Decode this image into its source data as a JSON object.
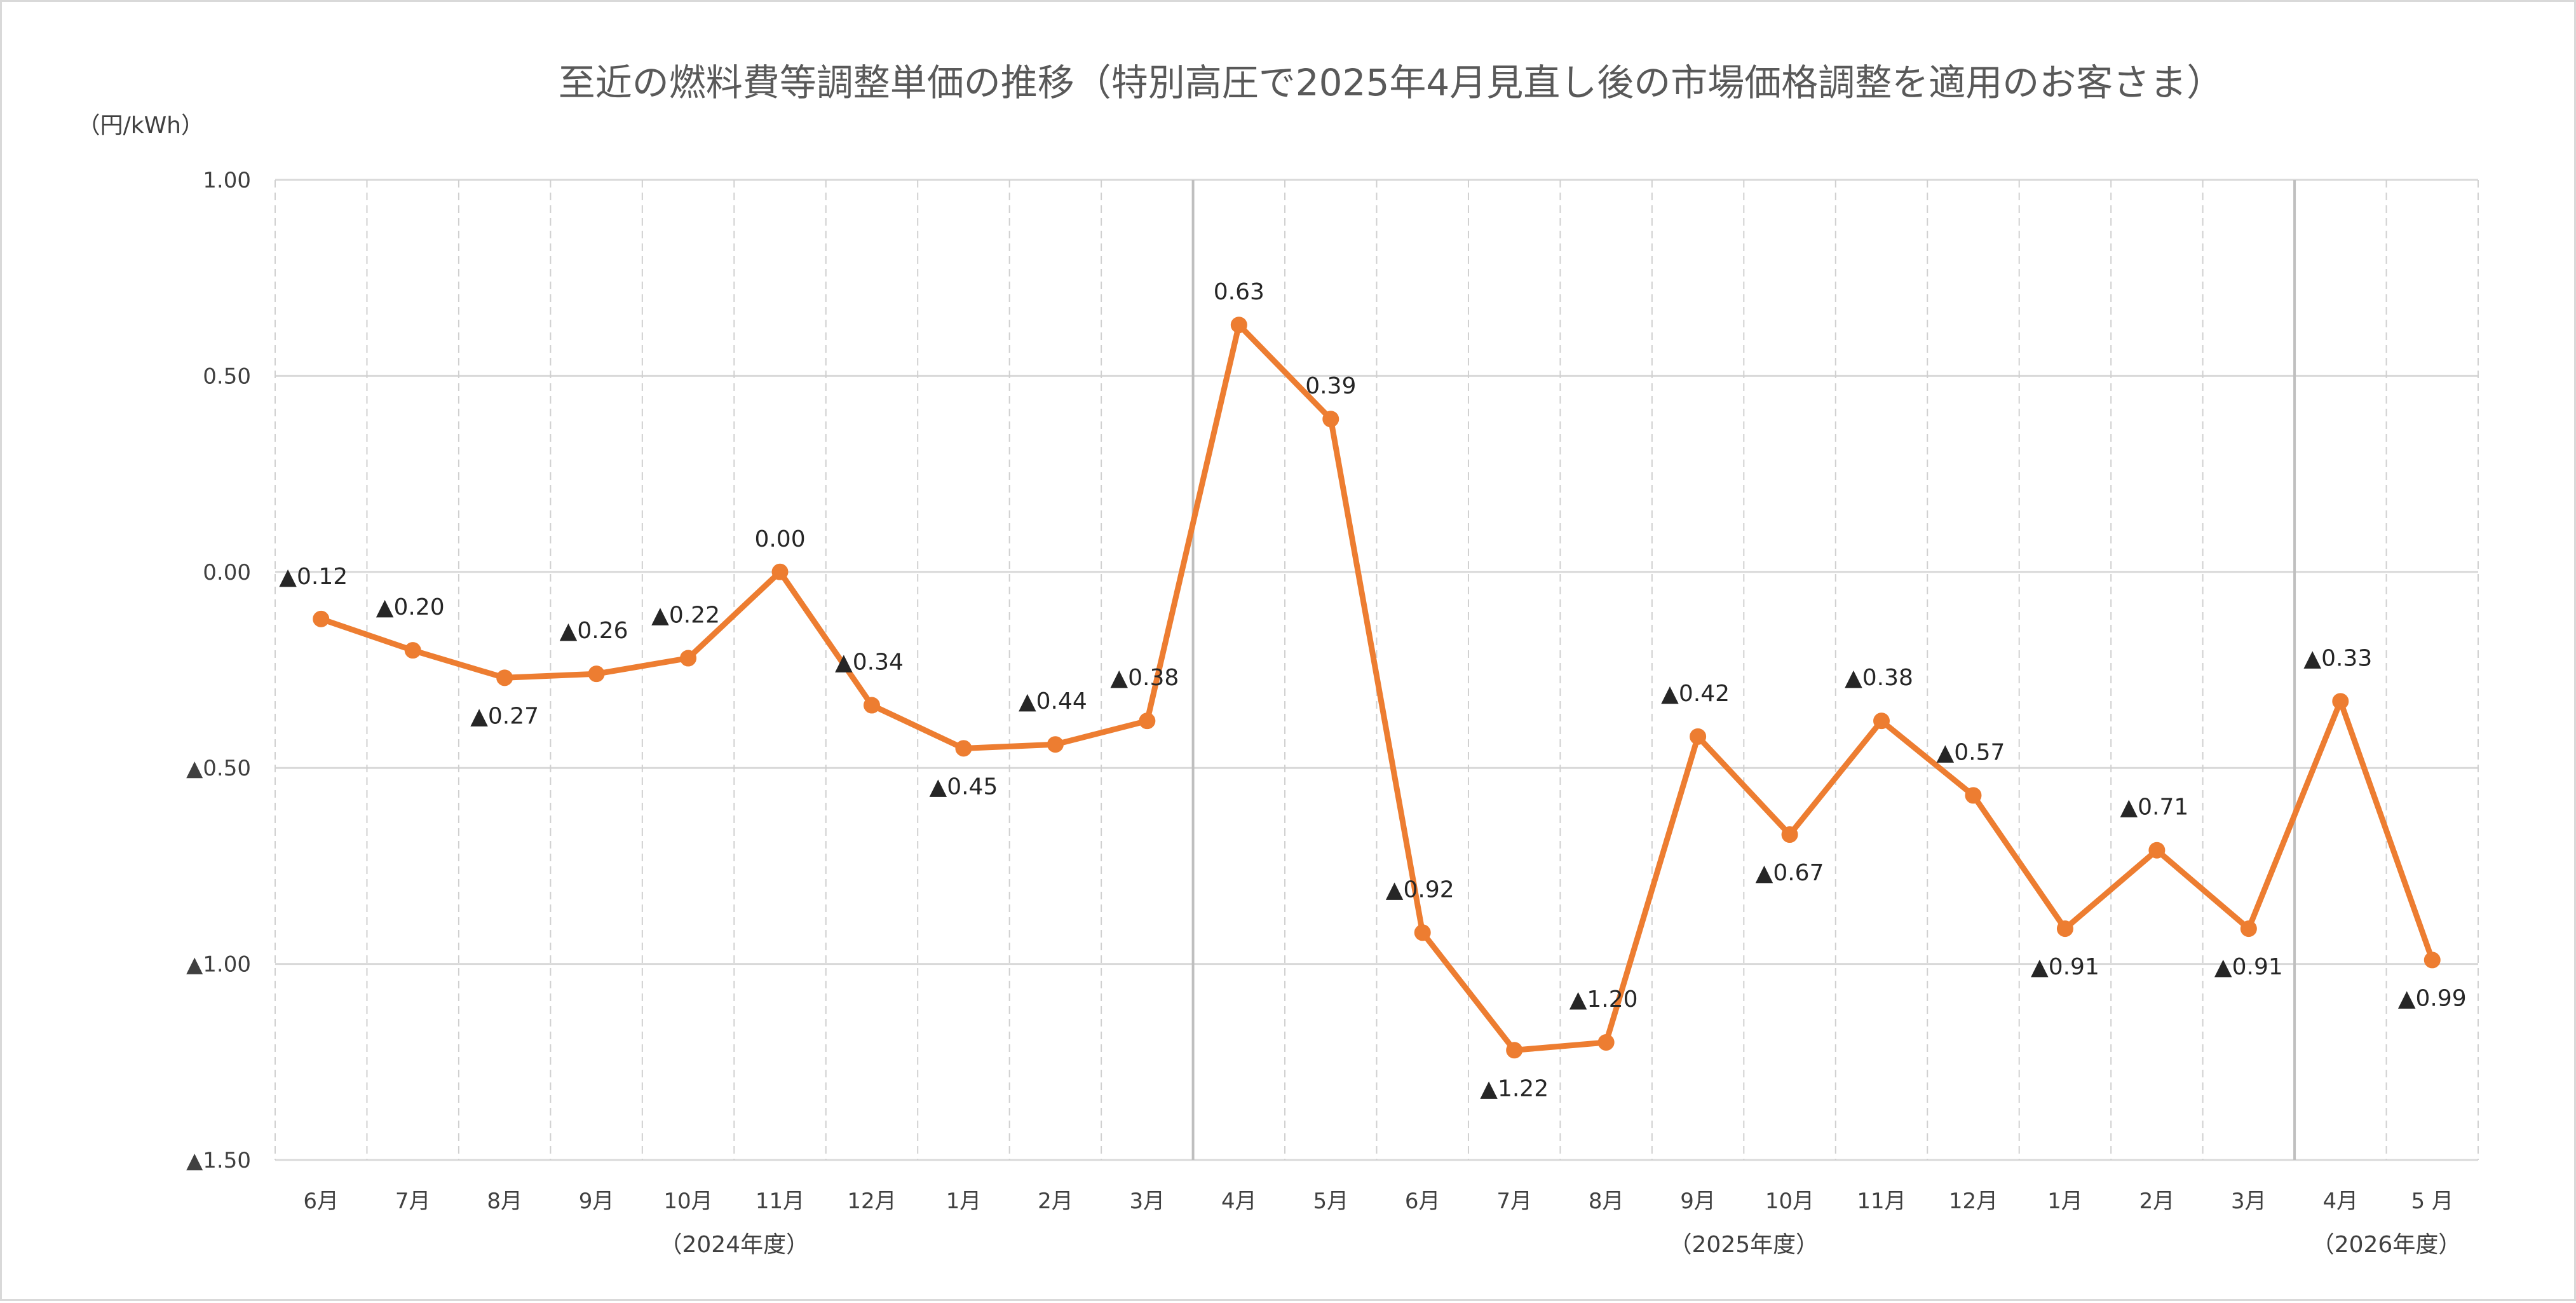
{
  "chart_data": {
    "type": "line",
    "title": "至近の燃料費等調整単価の推移（特別高圧で2025年4月見直し後の市場価格調整を適用のお客さま）",
    "unit_label": "（円/kWh）",
    "ylim": [
      -1.5,
      1.0
    ],
    "y_ticks": [
      1.0,
      0.5,
      0.0,
      -0.5,
      -1.0,
      -1.5
    ],
    "y_tick_labels": [
      "1.00",
      "0.50",
      "0.00",
      "▲0.50",
      "▲1.00",
      "▲1.50"
    ],
    "categories": [
      "6月",
      "7月",
      "8月",
      "9月",
      "10月",
      "11月",
      "12月",
      "1月",
      "2月",
      "3月",
      "4月",
      "5月",
      "6月",
      "7月",
      "8月",
      "9月",
      "10月",
      "11月",
      "12月",
      "1月",
      "2月",
      "3月",
      "4月",
      "5 月"
    ],
    "series": [
      {
        "name": "",
        "color": "#ed7d31",
        "values": [
          -0.12,
          -0.2,
          -0.27,
          -0.26,
          -0.22,
          0.0,
          -0.34,
          -0.45,
          -0.44,
          -0.38,
          0.63,
          0.39,
          -0.92,
          -1.22,
          -1.2,
          -0.42,
          -0.67,
          -0.38,
          -0.57,
          -0.91,
          -0.71,
          -0.91,
          -0.33,
          -0.99
        ],
        "data_labels": [
          "▲0.12",
          "▲0.20",
          "▲0.27",
          "▲0.26",
          "▲0.22",
          "0.00",
          "▲0.34",
          "▲0.45",
          "▲0.44",
          "▲0.38",
          "0.63",
          "0.39",
          "▲0.92",
          "▲1.22",
          "▲1.20",
          "▲0.42",
          "▲0.67",
          "▲0.38",
          "▲0.57",
          "▲0.91",
          "▲0.71",
          "▲0.91",
          "▲0.33",
          "▲0.99"
        ]
      }
    ],
    "groups": [
      {
        "label": "（2024年度）",
        "start_index": 0,
        "end_index": 9
      },
      {
        "label": "（2025年度）",
        "start_index": 10,
        "end_index": 21
      },
      {
        "label": "（2026年度）",
        "start_index": 22,
        "end_index": 23
      }
    ],
    "grid": true,
    "legend": "none"
  }
}
